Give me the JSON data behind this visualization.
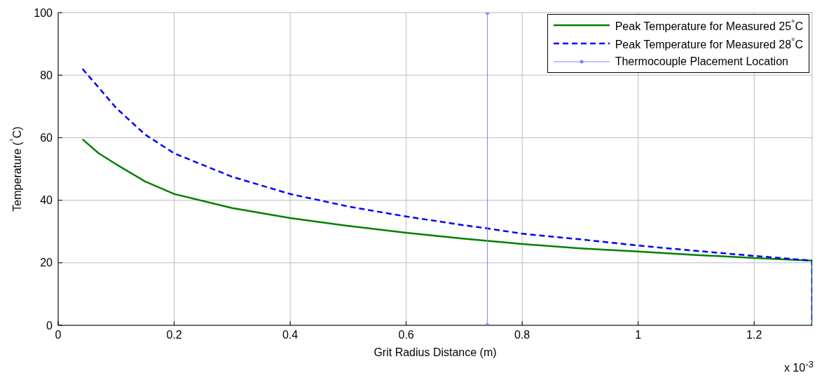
{
  "chart_data": {
    "type": "line",
    "xlabel": "Grit Radius Distance (m)",
    "ylabel": "Temperature ($^{°}$C)",
    "annotations": [
      "x 10$^{-3}$"
    ],
    "xlim": [
      0,
      1.3
    ],
    "xticks": [
      0,
      0.2,
      0.4,
      0.6,
      0.8,
      1,
      1.2
    ],
    "ylim": [
      0,
      100
    ],
    "yticks": [
      0,
      20,
      40,
      60,
      80,
      100
    ],
    "grid": true,
    "legend": "top right",
    "series": [
      {
        "name": "Peak Temperature for Measured 25$^{°}$C",
        "color": "#008000",
        "line_style": "solid",
        "marker": "none",
        "x": [
          0.042,
          0.07,
          0.1,
          0.15,
          0.2,
          0.3,
          0.4,
          0.5,
          0.6,
          0.7,
          0.74,
          0.8,
          0.9,
          1.0,
          1.1,
          1.2,
          1.3,
          1.3
        ],
        "values": [
          59.5,
          55,
          51.5,
          46,
          42,
          37.5,
          34.3,
          31.8,
          29.6,
          27.7,
          27,
          26,
          24.6,
          23.6,
          22.5,
          21.5,
          20.7,
          0
        ]
      },
      {
        "name": "Peak Temperature for Measured 28$^{°}$C",
        "color": "#0000ff",
        "line_style": "dashed",
        "marker": "none",
        "x": [
          0.042,
          0.07,
          0.1,
          0.15,
          0.2,
          0.3,
          0.4,
          0.5,
          0.6,
          0.7,
          0.74,
          0.8,
          0.9,
          1.0,
          1.1,
          1.2,
          1.3,
          1.3
        ],
        "values": [
          82,
          76,
          69.5,
          61,
          55,
          47.5,
          42,
          38,
          34.8,
          32,
          31,
          29.3,
          27.5,
          25.5,
          23.8,
          22.2,
          20.7,
          0
        ]
      },
      {
        "name": "Thermocouple Placement Location",
        "color": "#8080ff",
        "line_style": "solid",
        "marker": "circle",
        "x": [
          0.74,
          0.74
        ],
        "values": [
          0,
          100
        ]
      }
    ]
  }
}
